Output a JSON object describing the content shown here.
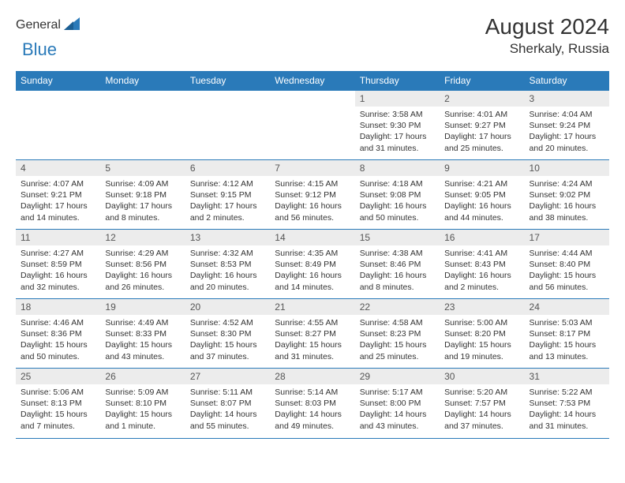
{
  "logo": {
    "text1": "General",
    "text2": "Blue"
  },
  "title": "August 2024",
  "location": "Sherkaly, Russia",
  "colors": {
    "accent": "#2a7ab9",
    "dayheader_bg": "#ececec",
    "text": "#333333"
  },
  "day_headers": [
    "Sunday",
    "Monday",
    "Tuesday",
    "Wednesday",
    "Thursday",
    "Friday",
    "Saturday"
  ],
  "weeks": [
    [
      null,
      null,
      null,
      null,
      {
        "n": "1",
        "sr": "3:58 AM",
        "ss": "9:30 PM",
        "dl": "17 hours and 31 minutes."
      },
      {
        "n": "2",
        "sr": "4:01 AM",
        "ss": "9:27 PM",
        "dl": "17 hours and 25 minutes."
      },
      {
        "n": "3",
        "sr": "4:04 AM",
        "ss": "9:24 PM",
        "dl": "17 hours and 20 minutes."
      }
    ],
    [
      {
        "n": "4",
        "sr": "4:07 AM",
        "ss": "9:21 PM",
        "dl": "17 hours and 14 minutes."
      },
      {
        "n": "5",
        "sr": "4:09 AM",
        "ss": "9:18 PM",
        "dl": "17 hours and 8 minutes."
      },
      {
        "n": "6",
        "sr": "4:12 AM",
        "ss": "9:15 PM",
        "dl": "17 hours and 2 minutes."
      },
      {
        "n": "7",
        "sr": "4:15 AM",
        "ss": "9:12 PM",
        "dl": "16 hours and 56 minutes."
      },
      {
        "n": "8",
        "sr": "4:18 AM",
        "ss": "9:08 PM",
        "dl": "16 hours and 50 minutes."
      },
      {
        "n": "9",
        "sr": "4:21 AM",
        "ss": "9:05 PM",
        "dl": "16 hours and 44 minutes."
      },
      {
        "n": "10",
        "sr": "4:24 AM",
        "ss": "9:02 PM",
        "dl": "16 hours and 38 minutes."
      }
    ],
    [
      {
        "n": "11",
        "sr": "4:27 AM",
        "ss": "8:59 PM",
        "dl": "16 hours and 32 minutes."
      },
      {
        "n": "12",
        "sr": "4:29 AM",
        "ss": "8:56 PM",
        "dl": "16 hours and 26 minutes."
      },
      {
        "n": "13",
        "sr": "4:32 AM",
        "ss": "8:53 PM",
        "dl": "16 hours and 20 minutes."
      },
      {
        "n": "14",
        "sr": "4:35 AM",
        "ss": "8:49 PM",
        "dl": "16 hours and 14 minutes."
      },
      {
        "n": "15",
        "sr": "4:38 AM",
        "ss": "8:46 PM",
        "dl": "16 hours and 8 minutes."
      },
      {
        "n": "16",
        "sr": "4:41 AM",
        "ss": "8:43 PM",
        "dl": "16 hours and 2 minutes."
      },
      {
        "n": "17",
        "sr": "4:44 AM",
        "ss": "8:40 PM",
        "dl": "15 hours and 56 minutes."
      }
    ],
    [
      {
        "n": "18",
        "sr": "4:46 AM",
        "ss": "8:36 PM",
        "dl": "15 hours and 50 minutes."
      },
      {
        "n": "19",
        "sr": "4:49 AM",
        "ss": "8:33 PM",
        "dl": "15 hours and 43 minutes."
      },
      {
        "n": "20",
        "sr": "4:52 AM",
        "ss": "8:30 PM",
        "dl": "15 hours and 37 minutes."
      },
      {
        "n": "21",
        "sr": "4:55 AM",
        "ss": "8:27 PM",
        "dl": "15 hours and 31 minutes."
      },
      {
        "n": "22",
        "sr": "4:58 AM",
        "ss": "8:23 PM",
        "dl": "15 hours and 25 minutes."
      },
      {
        "n": "23",
        "sr": "5:00 AM",
        "ss": "8:20 PM",
        "dl": "15 hours and 19 minutes."
      },
      {
        "n": "24",
        "sr": "5:03 AM",
        "ss": "8:17 PM",
        "dl": "15 hours and 13 minutes."
      }
    ],
    [
      {
        "n": "25",
        "sr": "5:06 AM",
        "ss": "8:13 PM",
        "dl": "15 hours and 7 minutes."
      },
      {
        "n": "26",
        "sr": "5:09 AM",
        "ss": "8:10 PM",
        "dl": "15 hours and 1 minute."
      },
      {
        "n": "27",
        "sr": "5:11 AM",
        "ss": "8:07 PM",
        "dl": "14 hours and 55 minutes."
      },
      {
        "n": "28",
        "sr": "5:14 AM",
        "ss": "8:03 PM",
        "dl": "14 hours and 49 minutes."
      },
      {
        "n": "29",
        "sr": "5:17 AM",
        "ss": "8:00 PM",
        "dl": "14 hours and 43 minutes."
      },
      {
        "n": "30",
        "sr": "5:20 AM",
        "ss": "7:57 PM",
        "dl": "14 hours and 37 minutes."
      },
      {
        "n": "31",
        "sr": "5:22 AM",
        "ss": "7:53 PM",
        "dl": "14 hours and 31 minutes."
      }
    ]
  ],
  "labels": {
    "sunrise": "Sunrise: ",
    "sunset": "Sunset: ",
    "daylight": "Daylight: "
  }
}
